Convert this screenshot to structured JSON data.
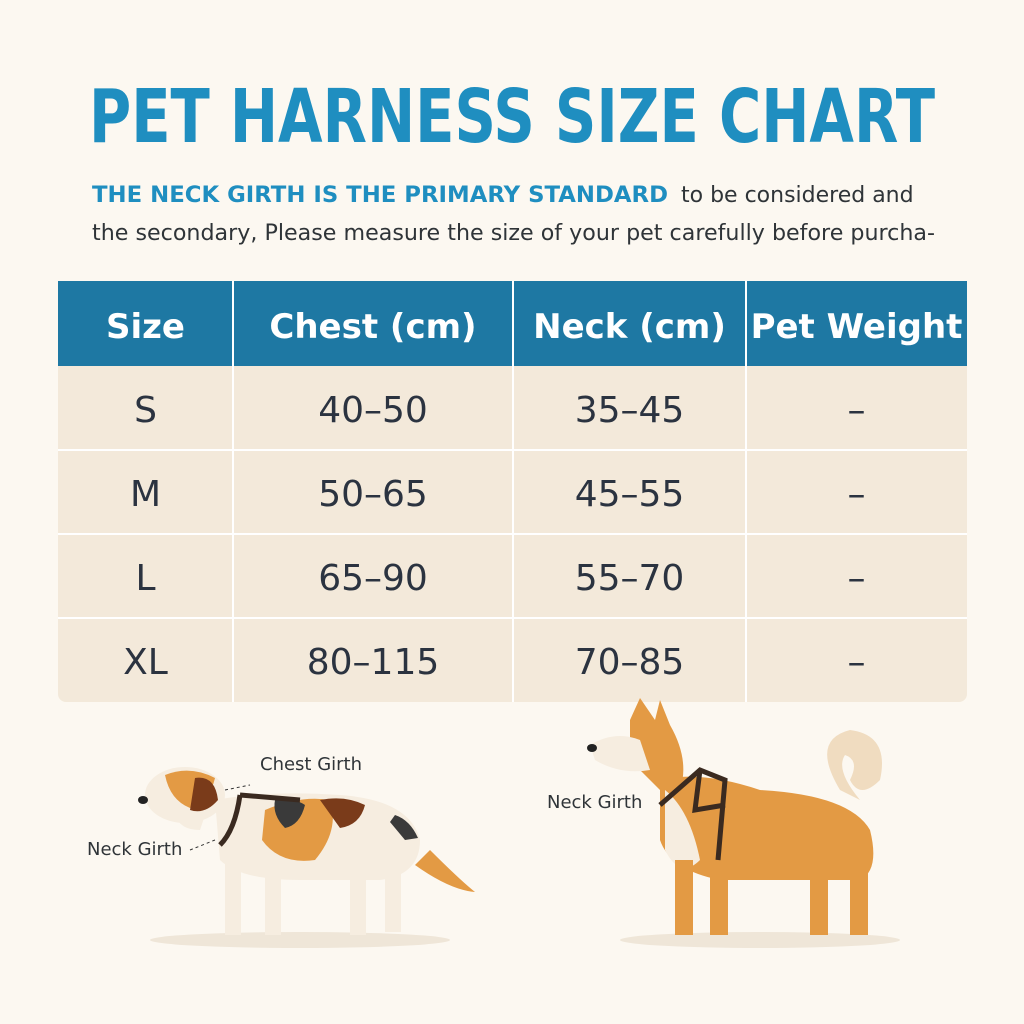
{
  "header": {
    "title": "PET HARNESS SIZE CHART",
    "subtitle": {
      "highlight": "THE NECK GIRTH IS THE PRIMARY STANDARD",
      "line1_rest": "to be considered and",
      "line2": "the secondary, Please measure the size of your pet carefully before purcha-"
    }
  },
  "table": {
    "headers": [
      "Size",
      "Chest (cm)",
      "Neck (cm)",
      "Pet Weight"
    ],
    "rows": [
      [
        "S",
        "40–50",
        "35–45",
        "–"
      ],
      [
        "M",
        "50–65",
        "45–55",
        "–"
      ],
      [
        "L",
        "65–90",
        "55–70",
        "–"
      ],
      [
        "XL",
        "80–115",
        "70–85",
        "–"
      ]
    ]
  },
  "illustrations": {
    "left": {
      "chest_label": "Chest Girth",
      "neck_label": "Neck Girth"
    },
    "right": {
      "neck_label": "Neck Girth"
    }
  }
}
